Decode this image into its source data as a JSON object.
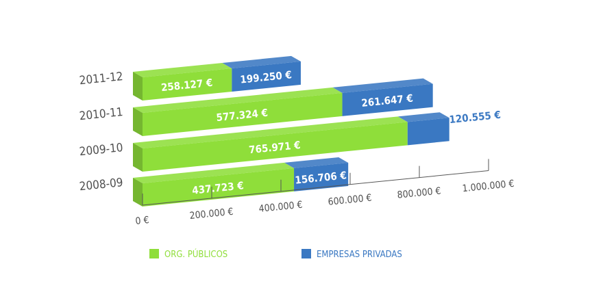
{
  "chart_data": {
    "type": "bar",
    "orientation": "horizontal",
    "stacked": true,
    "style": "3d",
    "categories": [
      "2011-12",
      "2010-11",
      "2009-10",
      "2008-09"
    ],
    "series": [
      {
        "name": "ORG. PÚBLICOS",
        "color": "#8fde3a",
        "values": [
          258127,
          577324,
          765971,
          437723
        ],
        "labels": [
          "258.127 €",
          "577.324 €",
          "765.971 €",
          "437.723 €"
        ]
      },
      {
        "name": "EMPRESAS PRIVADAS",
        "color": "#3a78c2",
        "values": [
          199250,
          261647,
          120555,
          156706
        ],
        "labels": [
          "199.250 €",
          "261.647 €",
          "120.555 €",
          "156.706 €"
        ]
      }
    ],
    "xlim": [
      0,
      1000000
    ],
    "xticks": [
      0,
      200000,
      400000,
      600000,
      800000,
      1000000
    ],
    "xtick_labels": [
      "0 €",
      "200.000 €",
      "400.000 €",
      "600.000 €",
      "800.000 €",
      "1.000.000 €"
    ],
    "title": "",
    "xlabel": "",
    "ylabel": "",
    "legend": {
      "position": "bottom"
    },
    "grid": false
  }
}
